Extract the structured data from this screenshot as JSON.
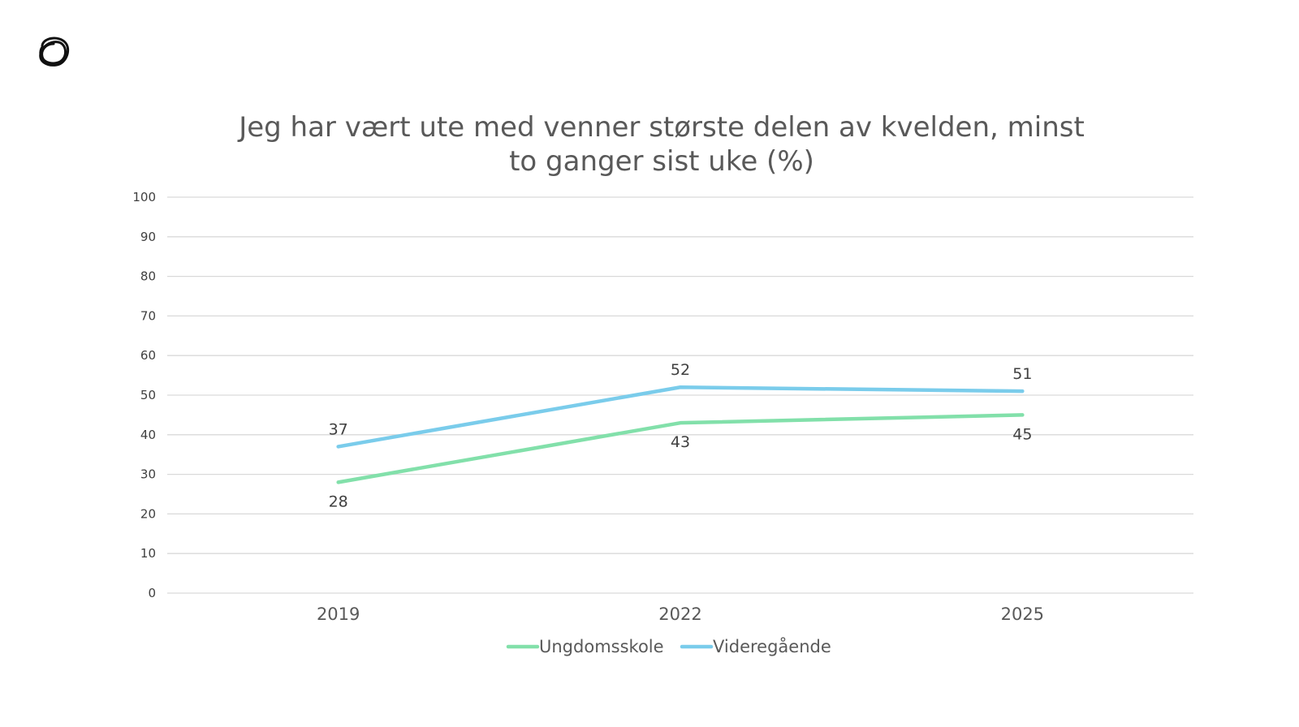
{
  "chart_data": {
    "type": "line",
    "title": "Jeg har vært ute med venner største delen av kvelden, minst to ganger sist uke (%)",
    "title_lines": [
      "Jeg har vært ute med venner største delen av kvelden, minst",
      "to ganger sist uke (%)"
    ],
    "categories": [
      "2019",
      "2022",
      "2025"
    ],
    "series": [
      {
        "name": "Ungdomsskole",
        "values": [
          28,
          43,
          45
        ],
        "color": "#82E0AA",
        "label_position": "below"
      },
      {
        "name": "Videregående",
        "values": [
          37,
          52,
          51
        ],
        "color": "#7ACCEB",
        "label_position": "above"
      }
    ],
    "ylim": [
      0,
      100
    ],
    "y_ticks": [
      "0",
      "10",
      "20",
      "30",
      "40",
      "50",
      "60",
      "70",
      "80",
      "90",
      "100"
    ],
    "grid": true,
    "legend_position": "bottom",
    "xlabel": "",
    "ylabel": ""
  },
  "logo": {
    "icon": "loop-logo-icon"
  }
}
